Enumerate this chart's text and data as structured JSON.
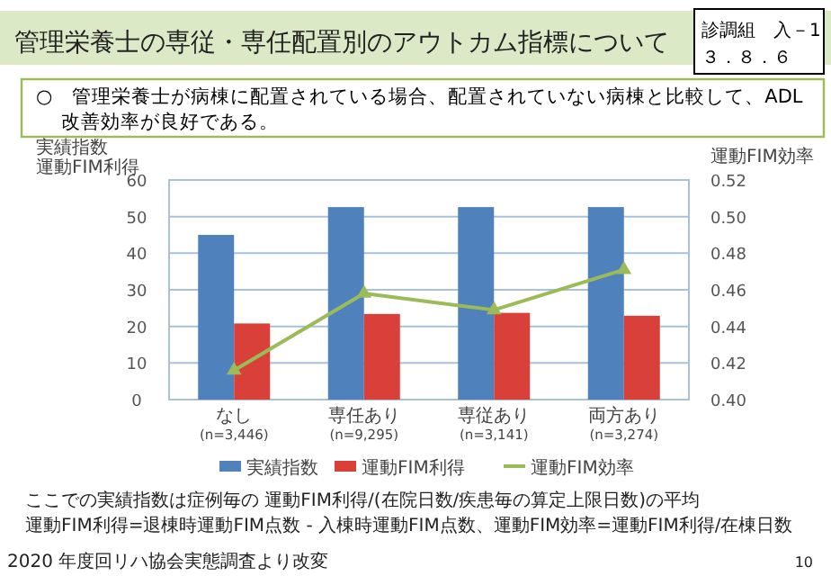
{
  "chart_data": {
    "type": "bar",
    "title": "管理栄養士の専従・専任配置別のアウトカム指標について",
    "subtitle": "○　管理栄養士が病棟に配置されている場合、配置されていない病棟と比較して、ADL改善効率が良好である。",
    "ylabel": "実績指数",
    "y2label": "運動FIM効率",
    "categories": [
      "なし\n(n=3,446)",
      "専任あり\n(n=9,295)",
      "専従あり\n(n=3,141)",
      "両方あり\n(n=3,274)"
    ],
    "series": [
      {
        "name": "実績指数",
        "color": "#4f81bd",
        "values": [
          45,
          52.6,
          52.6,
          52.6
        ]
      },
      {
        "name": "運動FIM利得",
        "color": "#d9403a",
        "values": [
          20.8,
          23.4,
          23.7,
          22.9
        ]
      },
      {
        "name": "運動FIM効率",
        "color": "#9bbb59",
        "type": "line",
        "axis": "y2",
        "marker": "triangle",
        "values": [
          0.416,
          0.458,
          0.449,
          0.471
        ]
      }
    ],
    "ylim": [
      0,
      60
    ],
    "yticks": [
      0,
      10,
      20,
      30,
      40,
      50,
      60
    ],
    "y2lim": [
      0.4,
      0.52
    ],
    "y2ticks": [
      {
        "value": 0.4,
        "label": "0.40"
      },
      {
        "value": 0.42,
        "label": "0.42"
      },
      {
        "value": 0.44,
        "label": "0.44"
      },
      {
        "value": 0.46,
        "label": "0.46"
      },
      {
        "value": 0.48,
        "label": "0.48"
      },
      {
        "value": 0.5,
        "label": "0.50"
      },
      {
        "value": 0.52,
        "label": "0.52"
      }
    ],
    "grid": "y",
    "legend": "bottom",
    "annotations": [
      "診調組　入－1\n３．８．６",
      "ここでの実績指数は症例毎の 運動FIM利得/(在院日数/疾患毎の算定上限日数)の平均",
      "運動FIM利得=退棟時運動FIM点数 - 入棟時運動FIM点数、運動FIM効率=運動FIM利得/在棟日数",
      "2020 年度回リハ協会実態調査より改変",
      "10",
      "運動FIM利得"
    ]
  }
}
